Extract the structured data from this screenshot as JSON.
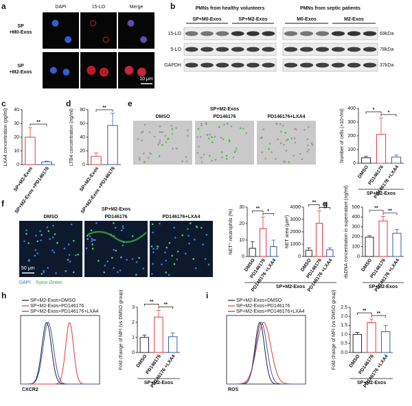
{
  "panel_letters": [
    "a",
    "b",
    "c",
    "d",
    "e",
    "f",
    "g",
    "h",
    "i"
  ],
  "a": {
    "columns": [
      "DAPI",
      "15-LO",
      "Merge"
    ],
    "rows": [
      [
        "SP",
        "+M0-Exos"
      ],
      [
        "SP",
        "+M2-Exos"
      ]
    ],
    "scale_bar": "10 μm"
  },
  "b": {
    "groups": [
      "PMNs from healthy volunteers",
      "PMNs from septic patients"
    ],
    "subgroups": [
      "SP+M0-Exos",
      "SP+M2-Exos",
      "M0-Exos",
      "M2-Exos"
    ],
    "proteins": [
      "15-LO",
      "5-LO",
      "GAPDH"
    ],
    "sizes": [
      "69kDa",
      "78kDa",
      "37kDa"
    ]
  },
  "e": {
    "title": "SP+M2-Exos",
    "images": [
      "DMSO",
      "PD146176",
      "PD146176+LXA4"
    ]
  },
  "f": {
    "title": "SP+M2-Exos",
    "images": [
      "DMSO",
      "PD146176",
      "PD146176+LXA4"
    ],
    "scale_bar": "50 μm",
    "stains": [
      "DAPI",
      "Sytox Green"
    ]
  },
  "h": {
    "legend": [
      "SP+M2-Exos+DMSO",
      "SP+M2-Exos+PD146176",
      "SP+M2-Exos+PD146176+LXA4"
    ],
    "colors": [
      "#222222",
      "#e8333a",
      "#3a56b0"
    ],
    "xlabel": "CXCR2"
  },
  "i": {
    "legend": [
      "SP+M2-Exos+DMSO",
      "SP+M2-Exos+PD146176",
      "SP+M2-Exos+PD146176+LXA4"
    ],
    "colors": [
      "#222222",
      "#e8333a",
      "#3a56b0"
    ],
    "xlabel": "ROS"
  },
  "chart_data": [
    {
      "type": "bar",
      "ylabel": "LXA4 concentration (pg/ml)",
      "categories": [
        "SP+M2-Exos",
        "SP+M2-Exos +PD146176"
      ],
      "values": [
        20,
        2
      ],
      "errors": [
        7,
        0.5
      ],
      "colors": [
        "#e8333a",
        "#3a56b0"
      ],
      "ylim": [
        0,
        40
      ],
      "yticks": [
        0,
        10,
        20,
        30,
        40
      ],
      "annotations": [
        "**"
      ]
    },
    {
      "type": "bar",
      "ylabel": "LTB4 concentration (ng/ml)",
      "categories": [
        "SP+M2-Exos",
        "SP+M2-Exos +PD146176"
      ],
      "values": [
        12,
        57
      ],
      "errors": [
        5,
        18
      ],
      "colors": [
        "#e8333a",
        "#3a56b0"
      ],
      "ylim": [
        0,
        80
      ],
      "yticks": [
        0,
        20,
        40,
        60,
        80
      ],
      "annotations": [
        "**"
      ]
    },
    {
      "type": "bar",
      "ylabel": "Number of cells (×10⁴/ml)",
      "categories": [
        "DMSO",
        "PD146176",
        "PD146176 +LXA4"
      ],
      "values": [
        40,
        210,
        45
      ],
      "errors": [
        10,
        120,
        15
      ],
      "colors": [
        "#222222",
        "#e8333a",
        "#3a56b0"
      ],
      "ylim": [
        0,
        400
      ],
      "yticks": [
        0,
        100,
        200,
        300,
        400
      ],
      "annotations": [
        "*",
        "*"
      ],
      "group": "SP+M2-Exos"
    },
    {
      "type": "bar",
      "ylabel": "NET⁺ neutrophils (%)",
      "categories": [
        "DMSO",
        "PD146176",
        "PD146176 +LXA4"
      ],
      "values": [
        5,
        17,
        6
      ],
      "errors": [
        4,
        7,
        4
      ],
      "colors": [
        "#222222",
        "#e8333a",
        "#3a56b0"
      ],
      "ylim": [
        0,
        30
      ],
      "yticks": [
        0,
        10,
        20,
        30
      ],
      "annotations": [
        "**",
        "*"
      ]
    },
    {
      "type": "bar",
      "ylabel": "NET area (μm²)",
      "categories": [
        "DMSO",
        "PD146176",
        "PD146176 +LXA4"
      ],
      "values": [
        500,
        2700,
        550
      ],
      "errors": [
        200,
        1000,
        150
      ],
      "colors": [
        "#222222",
        "#e8333a",
        "#3a56b0"
      ],
      "ylim": [
        0,
        4000
      ],
      "yticks": [
        0,
        1000,
        2000,
        3000,
        4000
      ],
      "annotations": [
        "**",
        "**"
      ],
      "group": "SP+M2-Exos"
    },
    {
      "type": "bar",
      "ylabel": "dsDNA concentration in supernatant (ng/ml)",
      "categories": [
        "DMSO",
        "PD146176",
        "PD146176 +LXA4"
      ],
      "values": [
        195,
        360,
        235
      ],
      "errors": [
        15,
        45,
        40
      ],
      "colors": [
        "#222222",
        "#e8333a",
        "#3a56b0"
      ],
      "ylim": [
        0,
        500
      ],
      "yticks": [
        0,
        100,
        200,
        300,
        400,
        500
      ],
      "annotations": [
        "**",
        "**"
      ],
      "group": "SP+M2-Exos"
    },
    {
      "type": "bar",
      "ylabel": "Fold change of MFI (vs DMSO group)",
      "categories": [
        "DMSO",
        "PD146176",
        "PD146176 +LXA4"
      ],
      "values": [
        1.0,
        2.35,
        1.05
      ],
      "errors": [
        0.15,
        0.45,
        0.25
      ],
      "colors": [
        "#222222",
        "#e8333a",
        "#3a56b0"
      ],
      "ylim": [
        0,
        3
      ],
      "yticks": [
        0,
        1,
        2,
        3
      ],
      "annotations": [
        "**",
        "**"
      ],
      "group": "SP+M2-Exos"
    },
    {
      "type": "bar",
      "ylabel": "Fold change of MFI (vs DMSO group)",
      "categories": [
        "DMSO",
        "PD146176",
        "PD146176 +LXA4"
      ],
      "values": [
        1.0,
        1.65,
        1.15
      ],
      "errors": [
        0.12,
        0.2,
        0.35
      ],
      "colors": [
        "#222222",
        "#e8333a",
        "#3a56b0"
      ],
      "ylim": [
        0,
        2.5
      ],
      "yticks": [
        {
          "value": 0,
          "label": "0.0"
        },
        {
          "value": 0.5,
          "label": "0.5"
        },
        {
          "value": 1,
          "label": "1.0"
        },
        {
          "value": 1.5,
          "label": "1.5"
        },
        {
          "value": 2,
          "label": "2.0"
        },
        {
          "value": 2.5,
          "label": "2.5"
        }
      ],
      "annotations": [
        "**",
        "**"
      ],
      "group": "SP+M2-Exos"
    }
  ]
}
